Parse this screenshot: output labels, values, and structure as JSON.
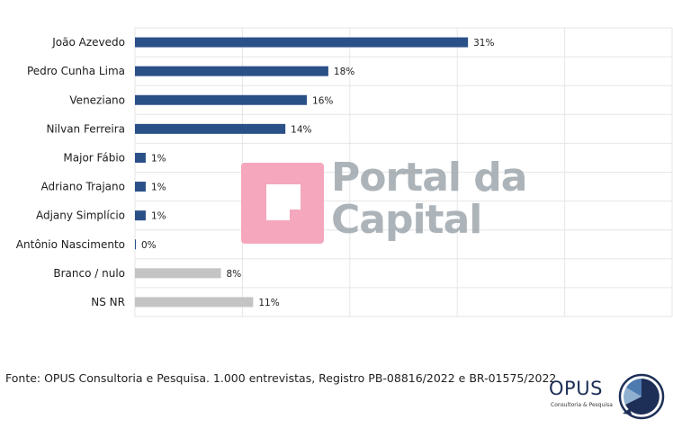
{
  "chart_data": {
    "type": "bar",
    "orientation": "horizontal",
    "categories": [
      "João Azevedo",
      "Pedro Cunha Lima",
      "Veneziano",
      "Nilvan Ferreira",
      "Major Fábio",
      "Adriano Trajano",
      "Adjany Simplício",
      "Antônio Nascimento",
      "Branco / nulo",
      "NS NR"
    ],
    "values": [
      31,
      18,
      16,
      14,
      1,
      1,
      1,
      0,
      8,
      11
    ],
    "value_labels": [
      "31%",
      "18%",
      "16%",
      "14%",
      "1%",
      "1%",
      "1%",
      "0%",
      "8%",
      "11%"
    ],
    "unit": "%",
    "xlim": [
      0,
      50
    ],
    "grid": true,
    "colors": {
      "candidate": "#2a5088",
      "other": "#c4c4c4",
      "grid": "#e6e6e6"
    },
    "candidate_count": 8
  },
  "watermark": {
    "line1": "Portal da",
    "line2": "Capital",
    "logo_color": "#f4a7bd",
    "text_color": "#9fa8ad"
  },
  "source_text": "Fonte: OPUS Consultoria e Pesquisa. 1.000 entrevistas, Registro PB-08816/2022 e BR-01575/2022",
  "brand": {
    "name": "OPUS",
    "subtitle": "Consultoria & Pesquisa",
    "icon": "pie-chart-icon"
  }
}
